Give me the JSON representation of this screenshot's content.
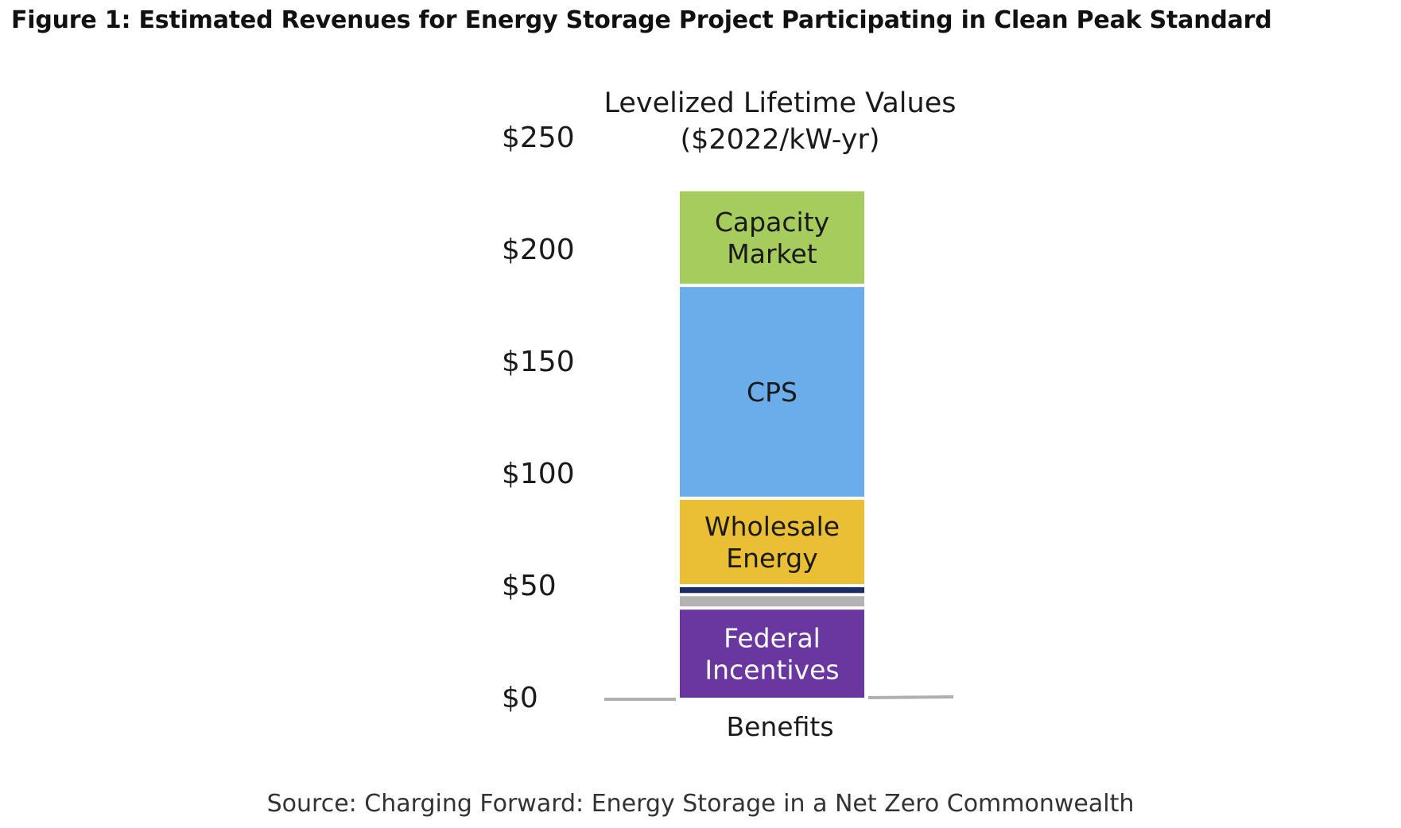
{
  "figure": {
    "title": "Figure 1: Estimated Revenues for Energy Storage Project Participating in Clean Peak Standard",
    "source": "Source: Charging Forward: Energy Storage in a Net Zero Commonwealth"
  },
  "chart_data": {
    "type": "bar",
    "stacked": true,
    "title": "Levelized Lifetime Values",
    "subtitle": "($2022/kW-yr)",
    "categories": [
      "Benefits"
    ],
    "yticks": [
      "$0",
      "$50",
      "$100",
      "$150",
      "$200",
      "$250"
    ],
    "ylim": [
      0,
      250
    ],
    "grid": false,
    "legend": "none",
    "series": [
      {
        "name": "Federal Incentives",
        "label_lines": [
          "Federal",
          "Incentives"
        ],
        "values": [
          40
        ],
        "color": "#6a37a0",
        "label_color": "#ffffff"
      },
      {
        "name": "",
        "label_lines": [],
        "values": [
          6
        ],
        "color": "#b3b3b3",
        "label_color": "#1a1a1a"
      },
      {
        "name": "",
        "label_lines": [],
        "values": [
          4
        ],
        "color": "#1c2c66",
        "label_color": "#1a1a1a"
      },
      {
        "name": "Wholesale Energy",
        "label_lines": [
          "Wholesale",
          "Energy"
        ],
        "values": [
          39
        ],
        "color": "#ebbf33",
        "label_color": "#1a1a1a"
      },
      {
        "name": "CPS",
        "label_lines": [
          "CPS"
        ],
        "values": [
          95
        ],
        "color": "#6aadea",
        "label_color": "#1a1a1a"
      },
      {
        "name": "Capacity Market",
        "label_lines": [
          "Capacity",
          "Market"
        ],
        "values": [
          42
        ],
        "color": "#a5cc5c",
        "label_color": "#1a1a1a"
      }
    ]
  }
}
